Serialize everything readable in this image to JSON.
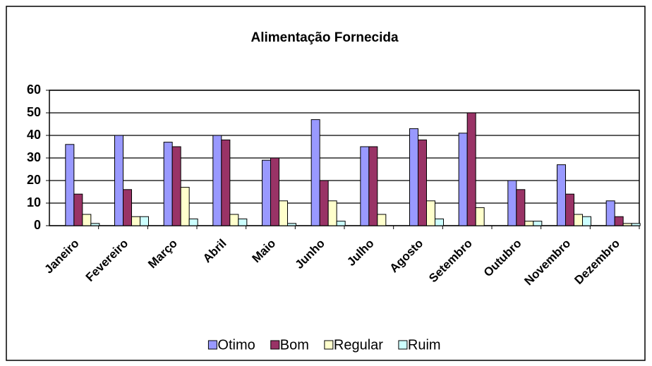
{
  "chart_data": {
    "type": "bar",
    "title": "Alimentação Fornecida",
    "categories": [
      "Janeiro",
      "Fevereiro",
      "Março",
      "Abril",
      "Maio",
      "Junho",
      "Julho",
      "Agosto",
      "Setembro",
      "Outubro",
      "Novembro",
      "Dezembro"
    ],
    "series": [
      {
        "name": "Otimo",
        "color": "#9999ff",
        "values": [
          36,
          40,
          37,
          40,
          29,
          47,
          35,
          43,
          41,
          20,
          27,
          11
        ]
      },
      {
        "name": "Bom",
        "color": "#993366",
        "values": [
          14,
          16,
          35,
          38,
          30,
          20,
          35,
          38,
          50,
          16,
          14,
          4
        ]
      },
      {
        "name": "Regular",
        "color": "#ffffcc",
        "values": [
          5,
          4,
          17,
          5,
          11,
          11,
          5,
          11,
          8,
          2,
          5,
          1
        ]
      },
      {
        "name": "Ruim",
        "color": "#ccffff",
        "values": [
          1,
          4,
          3,
          3,
          1,
          2,
          0,
          3,
          0,
          2,
          4,
          1
        ]
      }
    ],
    "ylim": [
      0,
      60
    ],
    "yticks": [
      0,
      10,
      20,
      30,
      40,
      50,
      60
    ],
    "grid": true,
    "legend": "bottom"
  }
}
